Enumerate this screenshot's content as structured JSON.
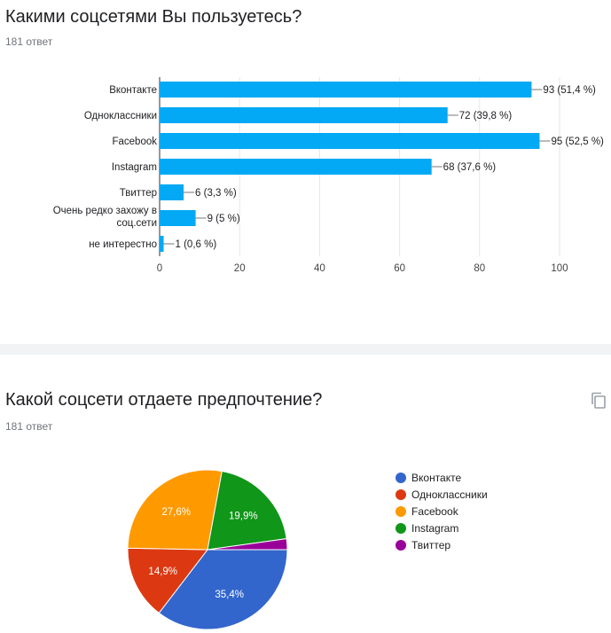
{
  "question1": {
    "title": "Какими соцсетями Вы пользуетесь?",
    "responses": "181 ответ"
  },
  "question2": {
    "title": "Какой соцсети отдаете предпочтение?",
    "responses": "181 ответ",
    "copy_icon": "copy-icon"
  },
  "chart_data": [
    {
      "type": "bar",
      "orientation": "horizontal",
      "categories": [
        "Вконтакте",
        "Одноклассники",
        "Facebook",
        "Instagram",
        "Твиттер",
        "Очень редко захожу в соц.сети",
        "не интерестно"
      ],
      "category_lines": [
        [
          "Вконтакте"
        ],
        [
          "Одноклассники"
        ],
        [
          "Facebook"
        ],
        [
          "Instagram"
        ],
        [
          "Твиттер"
        ],
        [
          "Очень редко захожу в",
          "соц.сети"
        ],
        [
          "не интерестно"
        ]
      ],
      "values": [
        93,
        72,
        95,
        68,
        6,
        9,
        1
      ],
      "data_labels": [
        "93 (51,4 %)",
        "72 (39,8 %)",
        "95 (52,5 %)",
        "68 (37,6 %)",
        "6 (3,3 %)",
        "9 (5 %)",
        "1 (0,6 %)"
      ],
      "xlim": [
        0,
        100
      ],
      "xticks": [
        0,
        20,
        40,
        60,
        80,
        100
      ],
      "bar_color": "#03a9f4",
      "grid": true
    },
    {
      "type": "pie",
      "labels": [
        "Вконтакте",
        "Одноклассники",
        "Facebook",
        "Instagram",
        "Твиттер"
      ],
      "values": [
        35.4,
        14.9,
        27.6,
        19.9,
        2.2
      ],
      "slice_labels": [
        "35,4%",
        "14,9%",
        "27,6%",
        "19,9%",
        ""
      ],
      "colors": [
        "#3366cc",
        "#dc3912",
        "#ff9900",
        "#109618",
        "#990099"
      ],
      "legend_position": "right"
    }
  ]
}
